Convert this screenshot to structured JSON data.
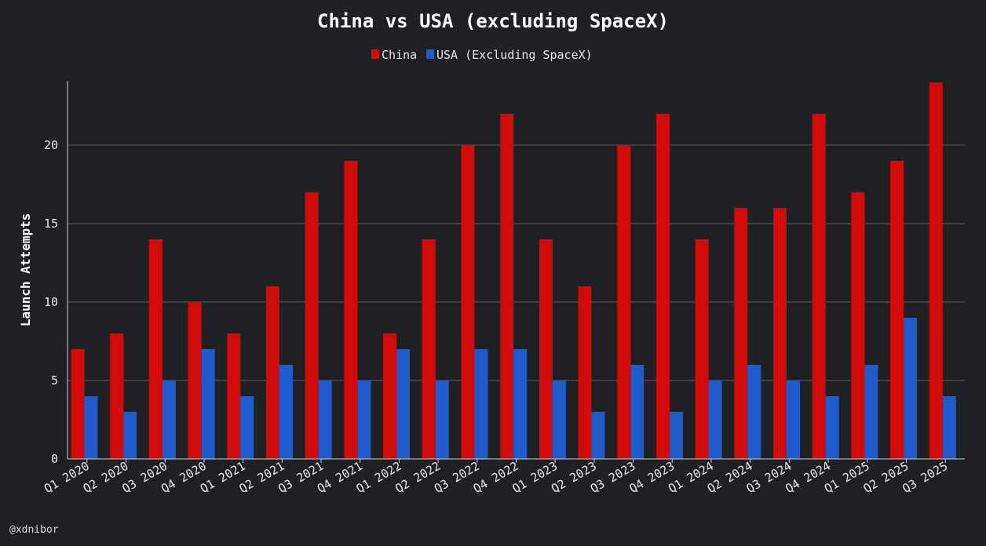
{
  "chart_data": {
    "type": "bar",
    "title": "China vs USA (excluding SpaceX)",
    "xlabel": "",
    "ylabel": "Launch Attempts",
    "ylim": [
      0,
      24
    ],
    "yticks": [
      0,
      5,
      10,
      15,
      20
    ],
    "grid": true,
    "legend_position": "top-center",
    "categories": [
      "Q1 2020",
      "Q2 2020",
      "Q3 2020",
      "Q4 2020",
      "Q1 2021",
      "Q2 2021",
      "Q3 2021",
      "Q4 2021",
      "Q1 2022",
      "Q2 2022",
      "Q3 2022",
      "Q4 2022",
      "Q1 2023",
      "Q2 2023",
      "Q3 2023",
      "Q4 2023",
      "Q1 2024",
      "Q2 2024",
      "Q3 2024",
      "Q4 2024",
      "Q1 2025",
      "Q2 2025",
      "Q3 2025"
    ],
    "series": [
      {
        "name": "China",
        "color": "#d10a0a",
        "values": [
          7,
          8,
          14,
          10,
          8,
          11,
          17,
          19,
          8,
          14,
          20,
          22,
          14,
          11,
          20,
          22,
          14,
          16,
          16,
          22,
          17,
          19,
          24
        ]
      },
      {
        "name": "USA (Excluding SpaceX)",
        "color": "#1f5bcc",
        "values": [
          4,
          3,
          5,
          7,
          4,
          6,
          5,
          5,
          7,
          5,
          7,
          7,
          5,
          3,
          6,
          3,
          5,
          6,
          5,
          4,
          6,
          9,
          4
        ]
      }
    ]
  },
  "watermark": "@xdnibor",
  "colors": {
    "background": "#1f2024",
    "gridline": "#5a5c62"
  }
}
